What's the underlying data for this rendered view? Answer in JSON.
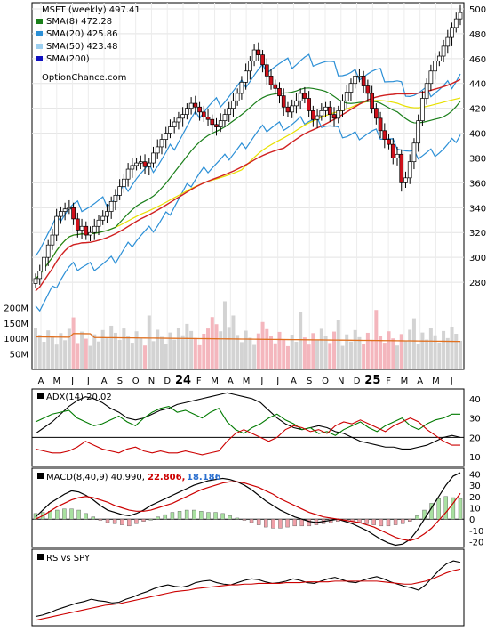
{
  "chart_data": [
    {
      "type": "candlestick",
      "title": "MSFT (weekly) 497.41",
      "source_label": "OptionChance.com",
      "last_close": 497.41,
      "legend_position": "top-left",
      "legend": [
        {
          "label": "SMA(8) 472.28",
          "color": "#1a7f1a"
        },
        {
          "label": "SMA(20) 425.86",
          "color": "#2b8fd6"
        },
        {
          "label": "SMA(50) 423.48",
          "color": "#9ccff0"
        },
        {
          "label": "SMA(200)",
          "color": "#1010c0"
        }
      ],
      "y_ticks": [
        280,
        300,
        320,
        340,
        360,
        380,
        400,
        420,
        440,
        460,
        480,
        500
      ],
      "ylim": [
        260,
        505
      ],
      "x_ticks": [
        "A",
        "M",
        "J",
        "J",
        "A",
        "S",
        "O",
        "N",
        "D",
        "24",
        "F",
        "M",
        "A",
        "M",
        "J",
        "J",
        "A",
        "S",
        "O",
        "N",
        "D",
        "25",
        "F",
        "M",
        "A",
        "M",
        "J"
      ],
      "bold_ticks": [
        "24",
        "25"
      ],
      "weekly_close": [
        283,
        289,
        300,
        310,
        318,
        333,
        337,
        339,
        340,
        331,
        322,
        325,
        318,
        320,
        325,
        330,
        333,
        337,
        345,
        350,
        357,
        363,
        371,
        374,
        376,
        377,
        373,
        376,
        384,
        389,
        395,
        400,
        405,
        409,
        412,
        415,
        420,
        424,
        421,
        417,
        413,
        411,
        407,
        405,
        410,
        415,
        420,
        426,
        432,
        441,
        450,
        458,
        467,
        463,
        455,
        446,
        439,
        436,
        430,
        421,
        417,
        422,
        426,
        432,
        428,
        418,
        411,
        414,
        418,
        421,
        415,
        412,
        418,
        426,
        433,
        440,
        446,
        446,
        438,
        432,
        420,
        412,
        402,
        395,
        391,
        380,
        383,
        360,
        364,
        377,
        392,
        410,
        428,
        440,
        450,
        458,
        462,
        470,
        477,
        485,
        492,
        497
      ],
      "sma8_last": 472.28,
      "sma20_last": 425.86,
      "sma50_last": 423.48,
      "volume_ticks": [
        "200M",
        "150M",
        "100M",
        "50M"
      ],
      "volume_ylim": [
        0,
        230
      ]
    },
    {
      "type": "line",
      "title": "ADX(14) 20.02",
      "value": 20.02,
      "y_ticks": [
        10,
        20,
        30,
        40
      ],
      "ylim": [
        5,
        45
      ],
      "series": [
        {
          "color": "#000000",
          "values": [
            22,
            25,
            28,
            32,
            36,
            39,
            41,
            40,
            38,
            35,
            33,
            30,
            29,
            30,
            32,
            34,
            35,
            37,
            38,
            39,
            40,
            41,
            42,
            43,
            42,
            41,
            40,
            38,
            34,
            30,
            27,
            25,
            24,
            25,
            26,
            25,
            23,
            22,
            20,
            18,
            17,
            16,
            15,
            15,
            14,
            14,
            15,
            16,
            18,
            20,
            21,
            20
          ]
        },
        {
          "color": "#007a00",
          "values": [
            28,
            30,
            32,
            33,
            34,
            30,
            28,
            26,
            27,
            29,
            31,
            28,
            26,
            30,
            33,
            35,
            36,
            33,
            34,
            32,
            30,
            33,
            35,
            28,
            24,
            22,
            25,
            27,
            30,
            32,
            29,
            27,
            24,
            25,
            22,
            23,
            21,
            24,
            26,
            28,
            25,
            23,
            26,
            28,
            30,
            26,
            24,
            27,
            29,
            30,
            32,
            32
          ]
        },
        {
          "color": "#cc0000",
          "values": [
            14,
            13,
            12,
            12,
            13,
            15,
            18,
            16,
            14,
            13,
            12,
            14,
            15,
            13,
            12,
            13,
            12,
            12,
            13,
            12,
            11,
            12,
            13,
            18,
            22,
            24,
            22,
            20,
            18,
            20,
            24,
            26,
            25,
            23,
            24,
            22,
            26,
            28,
            27,
            29,
            27,
            25,
            23,
            26,
            28,
            30,
            28,
            24,
            21,
            18,
            16,
            16
          ]
        }
      ]
    },
    {
      "type": "bar",
      "title": "MACD(8,40,9) 40.990,",
      "macd": 40.99,
      "signal_label": "22.806,",
      "hist_label": "18.186",
      "y_ticks": [
        -20,
        -10,
        0,
        10,
        20,
        30,
        40
      ],
      "ylim": [
        -25,
        45
      ],
      "macd_line": [
        2,
        8,
        14,
        18,
        22,
        25,
        24,
        21,
        17,
        12,
        8,
        6,
        4,
        3,
        5,
        8,
        12,
        15,
        18,
        21,
        24,
        27,
        30,
        32,
        34,
        35,
        36,
        35,
        33,
        30,
        26,
        21,
        16,
        12,
        8,
        5,
        2,
        0,
        -2,
        -3,
        -2,
        -1,
        0,
        -2,
        -4,
        -7,
        -10,
        -14,
        -18,
        -21,
        -23,
        -22,
        -18,
        -10,
        0,
        10,
        20,
        30,
        38,
        41
      ],
      "signal_line": [
        0,
        3,
        7,
        11,
        14,
        17,
        19,
        20,
        19,
        17,
        15,
        12,
        10,
        8,
        7,
        7,
        8,
        10,
        12,
        14,
        17,
        20,
        23,
        26,
        28,
        30,
        32,
        33,
        33,
        32,
        30,
        28,
        25,
        22,
        18,
        15,
        12,
        9,
        6,
        4,
        2,
        1,
        0,
        -1,
        -2,
        -3,
        -5,
        -7,
        -10,
        -13,
        -16,
        -18,
        -19,
        -17,
        -13,
        -8,
        -1,
        6,
        14,
        22.8
      ],
      "histogram": [
        5,
        6,
        7,
        8,
        9,
        9,
        8,
        5,
        2,
        -1,
        -3,
        -4,
        -5,
        -6,
        -4,
        -2,
        0,
        2,
        4,
        6,
        7,
        8,
        8,
        7,
        6,
        6,
        5,
        3,
        1,
        -1,
        -3,
        -5,
        -7,
        -8,
        -8,
        -7,
        -6,
        -6,
        -6,
        -5,
        -4,
        -3,
        -2,
        -1,
        -2,
        -3,
        -4,
        -5,
        -6,
        -6,
        -5,
        -4,
        -2,
        3,
        8,
        14,
        18,
        20,
        19,
        18.2
      ]
    },
    {
      "type": "line",
      "title": "RS vs SPY",
      "series": [
        {
          "color": "#000000",
          "values": [
            10,
            12,
            15,
            19,
            22,
            25,
            28,
            30,
            33,
            31,
            30,
            28,
            29,
            33,
            36,
            40,
            43,
            47,
            50,
            52,
            50,
            49,
            51,
            55,
            57,
            58,
            55,
            53,
            52,
            55,
            58,
            60,
            59,
            56,
            54,
            55,
            57,
            60,
            58,
            55,
            54,
            57,
            60,
            62,
            59,
            56,
            55,
            58,
            61,
            63,
            60,
            56,
            53,
            50,
            48,
            45,
            52,
            62,
            72,
            80,
            84,
            82
          ]
        },
        {
          "color": "#cc0000",
          "values": [
            5,
            7,
            9,
            11,
            13,
            15,
            17,
            19,
            21,
            23,
            25,
            26,
            27,
            29,
            31,
            33,
            35,
            37,
            39,
            41,
            43,
            44,
            45,
            47,
            48,
            49,
            50,
            51,
            52,
            52,
            53,
            53,
            54,
            54,
            54,
            54,
            55,
            55,
            55,
            56,
            56,
            56,
            56,
            57,
            57,
            57,
            57,
            57,
            57,
            57,
            56,
            55,
            54,
            53,
            53,
            55,
            57,
            60,
            64,
            68,
            71,
            73
          ]
        }
      ]
    }
  ]
}
